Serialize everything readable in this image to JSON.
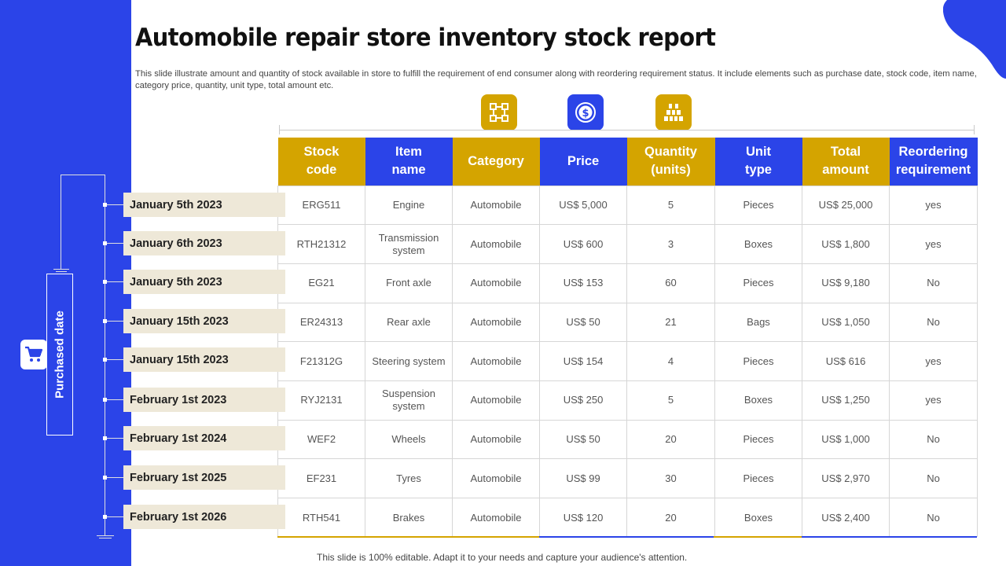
{
  "title": "Automobile repair store inventory stock report",
  "description": "This slide illustrate amount and quantity of stock available in store to fulfill the requirement of end consumer along with reordering requirement status. It include elements such as purchase date, stock code, item name, category price, quantity, unit type, total amount etc.",
  "side_label": "Purchased date",
  "icons": [
    "frame-icon",
    "dollar-coin-icon",
    "inventory-boxes-icon",
    "shopping-cart-icon"
  ],
  "colors": {
    "primary_blue": "#2b44e8",
    "gold": "#d4a400",
    "date_bg": "#eee8d8"
  },
  "table": {
    "headers": [
      {
        "line1": "Stock",
        "line2": "code",
        "color": "gold"
      },
      {
        "line1": "Item",
        "line2": "name",
        "color": "blue"
      },
      {
        "line1": "Category",
        "line2": "",
        "color": "gold"
      },
      {
        "line1": "Price",
        "line2": "",
        "color": "blue"
      },
      {
        "line1": "Quantity",
        "line2": "(units)",
        "color": "gold"
      },
      {
        "line1": "Unit",
        "line2": "type",
        "color": "blue"
      },
      {
        "line1": "Total",
        "line2": "amount",
        "color": "gold"
      },
      {
        "line1": "Reordering",
        "line2": "requirement",
        "color": "blue"
      }
    ],
    "rows": [
      {
        "date": "January 5th 2023",
        "cells": [
          "ERG511",
          "Engine",
          "Automobile",
          "US$ 5,000",
          "5",
          "Pieces",
          "US$ 25,000",
          "yes"
        ]
      },
      {
        "date": "January 6th 2023",
        "cells": [
          "RTH21312",
          "Transmission system",
          "Automobile",
          "US$ 600",
          "3",
          "Boxes",
          "US$ 1,800",
          "yes"
        ]
      },
      {
        "date": "January 5th 2023",
        "cells": [
          "EG21",
          "Front axle",
          "Automobile",
          "US$ 153",
          "60",
          "Pieces",
          "US$ 9,180",
          "No"
        ]
      },
      {
        "date": "January 15th 2023",
        "cells": [
          "ER24313",
          "Rear axle",
          "Automobile",
          "US$ 50",
          "21",
          "Bags",
          "US$ 1,050",
          "No"
        ]
      },
      {
        "date": "January 15th 2023",
        "cells": [
          "F21312G",
          "Steering system",
          "Automobile",
          "US$ 154",
          "4",
          "Pieces",
          "US$ 616",
          "yes"
        ]
      },
      {
        "date": "February 1st 2023",
        "cells": [
          "RYJ2131",
          "Suspension system",
          "Automobile",
          "US$ 250",
          "5",
          "Boxes",
          "US$ 1,250",
          "yes"
        ]
      },
      {
        "date": "February 1st 2024",
        "cells": [
          "WEF2",
          "Wheels",
          "Automobile",
          "US$ 50",
          "20",
          "Pieces",
          "US$ 1,000",
          "No"
        ]
      },
      {
        "date": "February 1st 2025",
        "cells": [
          "EF231",
          "Tyres",
          "Automobile",
          "US$ 99",
          "30",
          "Pieces",
          "US$ 2,970",
          "No"
        ]
      },
      {
        "date": "February 1st 2026",
        "cells": [
          "RTH541",
          "Brakes",
          "Automobile",
          "US$ 120",
          "20",
          "Boxes",
          "US$ 2,400",
          "No"
        ]
      }
    ]
  },
  "footer": "This slide is 100% editable. Adapt it to your needs and capture your audience's attention."
}
